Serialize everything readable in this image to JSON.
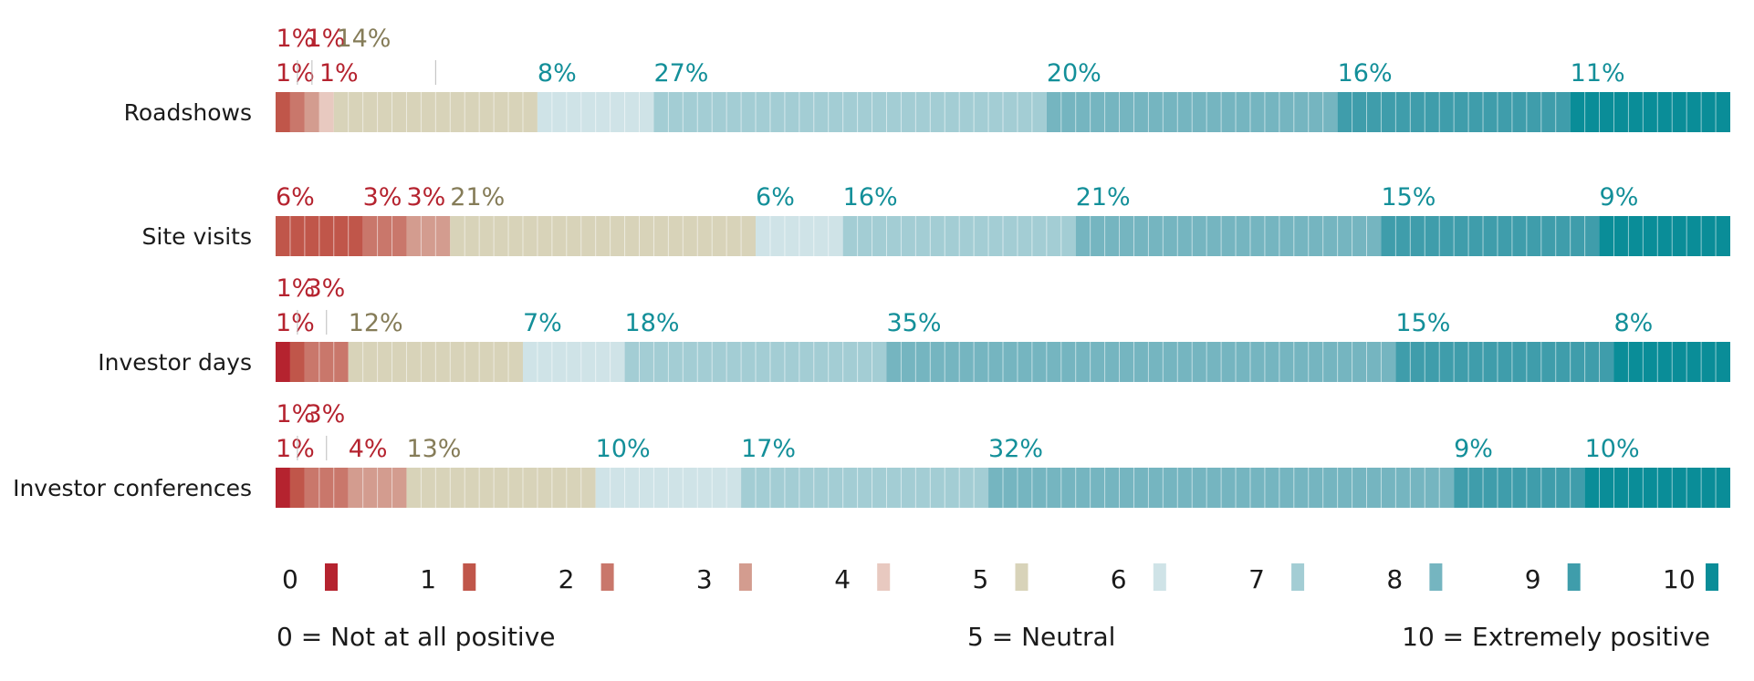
{
  "chart_data": {
    "type": "bar",
    "stacked": "100%",
    "orientation": "horizontal",
    "scale_points": [
      "0",
      "1",
      "2",
      "3",
      "4",
      "5",
      "6",
      "7",
      "8",
      "9",
      "10"
    ],
    "colors": {
      "0": "#b5232f",
      "1": "#c0564a",
      "2": "#c9776b",
      "3": "#d39c8f",
      "4": "#e8c9c0",
      "5": "#d8d3b9",
      "6": "#cfe3e7",
      "7": "#a3cdd4",
      "8": "#75b5c0",
      "9": "#3f9dab",
      "10": "#0a8d98"
    },
    "label_colors": {
      "negative": "#b5232f",
      "neutral": "#857c58",
      "positive": "#138f99"
    },
    "categories": [
      "Roadshows",
      "Site visits",
      "Investor days",
      "Investor conferences"
    ],
    "rows": [
      {
        "values": [
          0,
          1,
          1,
          1,
          1,
          14,
          8,
          27,
          20,
          16,
          11
        ],
        "labels": [
          "",
          "1%",
          "1%",
          "1%",
          "1%",
          "14%",
          "8%",
          "27%",
          "20%",
          "16%",
          "11%"
        ]
      },
      {
        "values": [
          0,
          6,
          3,
          3,
          0,
          21,
          6,
          16,
          21,
          15,
          9
        ],
        "labels": [
          "",
          "6%",
          "3%",
          "3%",
          "",
          "21%",
          "6%",
          "16%",
          "21%",
          "15%",
          "9%"
        ]
      },
      {
        "values": [
          1,
          1,
          3,
          0,
          0,
          12,
          7,
          18,
          35,
          15,
          8
        ],
        "labels": [
          "1%",
          "1%",
          "3%",
          "",
          "",
          "12%",
          "7%",
          "18%",
          "35%",
          "15%",
          "8%"
        ]
      },
      {
        "values": [
          1,
          1,
          3,
          4,
          0,
          13,
          10,
          17,
          32,
          9,
          10
        ],
        "labels": [
          "1%",
          "1%",
          "3%",
          "4%",
          "",
          "13%",
          "10%",
          "17%",
          "32%",
          "9%",
          "10%"
        ]
      }
    ],
    "legend": {
      "items": [
        "0",
        "1",
        "2",
        "3",
        "4",
        "5",
        "6",
        "7",
        "8",
        "9",
        "10"
      ],
      "notes": [
        "0 = Not at all positive",
        "5 = Neutral",
        "10 = Extremely positive"
      ]
    },
    "xlabel": "",
    "ylabel": ""
  }
}
